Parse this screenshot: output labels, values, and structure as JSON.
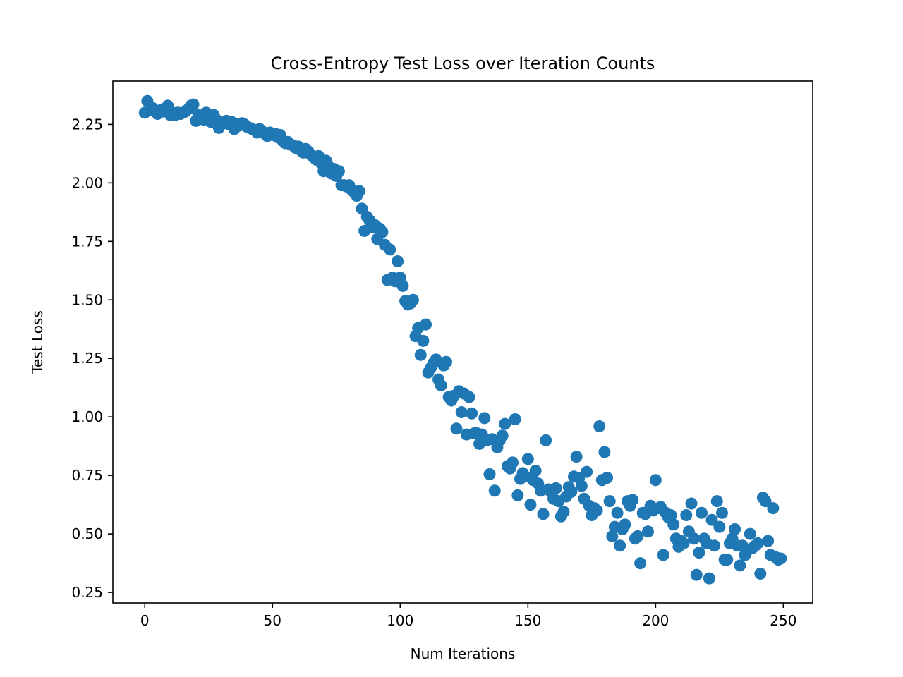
{
  "chart_data": {
    "type": "scatter",
    "title": "Cross-Entropy Test Loss over Iteration Counts",
    "xlabel": "Num Iterations",
    "ylabel": "Test Loss",
    "xlim": [
      -12.5,
      261.5
    ],
    "ylim": [
      0.205,
      2.435
    ],
    "xticks": [
      0,
      50,
      100,
      150,
      200,
      250
    ],
    "xtick_labels": [
      "0",
      "50",
      "100",
      "150",
      "200",
      "250"
    ],
    "yticks": [
      0.25,
      0.5,
      0.75,
      1.0,
      1.25,
      1.5,
      1.75,
      2.0,
      2.25
    ],
    "ytick_labels": [
      "0.25",
      "0.50",
      "0.75",
      "1.00",
      "1.25",
      "1.50",
      "1.75",
      "2.00",
      "2.25"
    ],
    "grid": false,
    "marker_color": "#1f77b4",
    "series": [
      {
        "points": [
          [
            0,
            2.3
          ],
          [
            1,
            2.35
          ],
          [
            2,
            2.31
          ],
          [
            3,
            2.32
          ],
          [
            4,
            2.31
          ],
          [
            5,
            2.295
          ],
          [
            6,
            2.31
          ],
          [
            7,
            2.305
          ],
          [
            8,
            2.315
          ],
          [
            9,
            2.33
          ],
          [
            10,
            2.29
          ],
          [
            11,
            2.3
          ],
          [
            12,
            2.29
          ],
          [
            13,
            2.3
          ],
          [
            14,
            2.295
          ],
          [
            15,
            2.3
          ],
          [
            16,
            2.305
          ],
          [
            17,
            2.315
          ],
          [
            18,
            2.33
          ],
          [
            19,
            2.335
          ],
          [
            20,
            2.265
          ],
          [
            21,
            2.29
          ],
          [
            22,
            2.275
          ],
          [
            23,
            2.27
          ],
          [
            24,
            2.3
          ],
          [
            25,
            2.28
          ],
          [
            26,
            2.26
          ],
          [
            27,
            2.29
          ],
          [
            28,
            2.27
          ],
          [
            29,
            2.235
          ],
          [
            30,
            2.26
          ],
          [
            31,
            2.255
          ],
          [
            32,
            2.265
          ],
          [
            33,
            2.25
          ],
          [
            34,
            2.26
          ],
          [
            35,
            2.23
          ],
          [
            36,
            2.25
          ],
          [
            37,
            2.245
          ],
          [
            38,
            2.255
          ],
          [
            39,
            2.25
          ],
          [
            40,
            2.24
          ],
          [
            41,
            2.235
          ],
          [
            42,
            2.23
          ],
          [
            43,
            2.225
          ],
          [
            44,
            2.215
          ],
          [
            45,
            2.23
          ],
          [
            46,
            2.22
          ],
          [
            47,
            2.21
          ],
          [
            48,
            2.2
          ],
          [
            49,
            2.215
          ],
          [
            50,
            2.205
          ],
          [
            51,
            2.21
          ],
          [
            52,
            2.195
          ],
          [
            53,
            2.205
          ],
          [
            54,
            2.18
          ],
          [
            55,
            2.17
          ],
          [
            56,
            2.175
          ],
          [
            57,
            2.165
          ],
          [
            58,
            2.16
          ],
          [
            59,
            2.15
          ],
          [
            60,
            2.155
          ],
          [
            61,
            2.14
          ],
          [
            62,
            2.13
          ],
          [
            63,
            2.145
          ],
          [
            64,
            2.135
          ],
          [
            65,
            2.12
          ],
          [
            66,
            2.11
          ],
          [
            67,
            2.1
          ],
          [
            68,
            2.115
          ],
          [
            69,
            2.085
          ],
          [
            70,
            2.05
          ],
          [
            71,
            2.095
          ],
          [
            72,
            2.07
          ],
          [
            73,
            2.04
          ],
          [
            74,
            2.06
          ],
          [
            75,
            2.03
          ],
          [
            76,
            2.05
          ],
          [
            77,
            1.99
          ],
          [
            78,
            1.99
          ],
          [
            79,
            1.985
          ],
          [
            80,
            1.99
          ],
          [
            81,
            1.97
          ],
          [
            82,
            1.96
          ],
          [
            83,
            1.945
          ],
          [
            84,
            1.965
          ],
          [
            85,
            1.89
          ],
          [
            86,
            1.795
          ],
          [
            87,
            1.855
          ],
          [
            88,
            1.84
          ],
          [
            89,
            1.81
          ],
          [
            90,
            1.82
          ],
          [
            91,
            1.76
          ],
          [
            92,
            1.805
          ],
          [
            93,
            1.79
          ],
          [
            94,
            1.735
          ],
          [
            95,
            1.585
          ],
          [
            96,
            1.715
          ],
          [
            97,
            1.595
          ],
          [
            98,
            1.58
          ],
          [
            99,
            1.665
          ],
          [
            100,
            1.595
          ],
          [
            101,
            1.56
          ],
          [
            102,
            1.495
          ],
          [
            103,
            1.48
          ],
          [
            104,
            1.485
          ],
          [
            105,
            1.5
          ],
          [
            106,
            1.345
          ],
          [
            107,
            1.38
          ],
          [
            108,
            1.265
          ],
          [
            109,
            1.325
          ],
          [
            110,
            1.395
          ],
          [
            111,
            1.19
          ],
          [
            112,
            1.21
          ],
          [
            113,
            1.23
          ],
          [
            114,
            1.245
          ],
          [
            115,
            1.16
          ],
          [
            116,
            1.135
          ],
          [
            117,
            1.22
          ],
          [
            118,
            1.235
          ],
          [
            119,
            1.085
          ],
          [
            120,
            1.07
          ],
          [
            121,
            1.09
          ],
          [
            122,
            0.95
          ],
          [
            123,
            1.11
          ],
          [
            124,
            1.02
          ],
          [
            125,
            1.1
          ],
          [
            126,
            0.925
          ],
          [
            127,
            1.085
          ],
          [
            128,
            1.015
          ],
          [
            129,
            0.93
          ],
          [
            130,
            0.93
          ],
          [
            131,
            0.885
          ],
          [
            132,
            0.925
          ],
          [
            133,
            0.995
          ],
          [
            134,
            0.9
          ],
          [
            135,
            0.755
          ],
          [
            136,
            0.905
          ],
          [
            137,
            0.685
          ],
          [
            138,
            0.87
          ],
          [
            139,
            0.9
          ],
          [
            140,
            0.92
          ],
          [
            141,
            0.97
          ],
          [
            142,
            0.79
          ],
          [
            143,
            0.78
          ],
          [
            144,
            0.805
          ],
          [
            145,
            0.99
          ],
          [
            146,
            0.665
          ],
          [
            147,
            0.735
          ],
          [
            148,
            0.76
          ],
          [
            149,
            0.745
          ],
          [
            150,
            0.82
          ],
          [
            151,
            0.625
          ],
          [
            152,
            0.73
          ],
          [
            153,
            0.77
          ],
          [
            154,
            0.715
          ],
          [
            155,
            0.685
          ],
          [
            156,
            0.585
          ],
          [
            157,
            0.9
          ],
          [
            158,
            0.69
          ],
          [
            159,
            0.68
          ],
          [
            160,
            0.65
          ],
          [
            161,
            0.695
          ],
          [
            162,
            0.64
          ],
          [
            163,
            0.575
          ],
          [
            164,
            0.595
          ],
          [
            165,
            0.66
          ],
          [
            166,
            0.7
          ],
          [
            167,
            0.68
          ],
          [
            168,
            0.745
          ],
          [
            169,
            0.83
          ],
          [
            170,
            0.74
          ],
          [
            171,
            0.705
          ],
          [
            172,
            0.65
          ],
          [
            173,
            0.765
          ],
          [
            174,
            0.62
          ],
          [
            175,
            0.58
          ],
          [
            176,
            0.61
          ],
          [
            177,
            0.6
          ],
          [
            178,
            0.96
          ],
          [
            179,
            0.73
          ],
          [
            180,
            0.85
          ],
          [
            181,
            0.74
          ],
          [
            182,
            0.64
          ],
          [
            183,
            0.49
          ],
          [
            184,
            0.53
          ],
          [
            185,
            0.59
          ],
          [
            186,
            0.45
          ],
          [
            187,
            0.52
          ],
          [
            188,
            0.54
          ],
          [
            189,
            0.64
          ],
          [
            190,
            0.62
          ],
          [
            191,
            0.645
          ],
          [
            192,
            0.48
          ],
          [
            193,
            0.49
          ],
          [
            194,
            0.375
          ],
          [
            195,
            0.59
          ],
          [
            196,
            0.585
          ],
          [
            197,
            0.51
          ],
          [
            198,
            0.62
          ],
          [
            199,
            0.6
          ],
          [
            200,
            0.73
          ],
          [
            201,
            0.61
          ],
          [
            202,
            0.615
          ],
          [
            203,
            0.41
          ],
          [
            204,
            0.59
          ],
          [
            205,
            0.57
          ],
          [
            206,
            0.58
          ],
          [
            207,
            0.54
          ],
          [
            208,
            0.48
          ],
          [
            209,
            0.445
          ],
          [
            210,
            0.47
          ],
          [
            211,
            0.46
          ],
          [
            212,
            0.58
          ],
          [
            213,
            0.51
          ],
          [
            214,
            0.63
          ],
          [
            215,
            0.48
          ],
          [
            216,
            0.325
          ],
          [
            217,
            0.42
          ],
          [
            218,
            0.59
          ],
          [
            219,
            0.48
          ],
          [
            220,
            0.46
          ],
          [
            221,
            0.31
          ],
          [
            222,
            0.56
          ],
          [
            223,
            0.45
          ],
          [
            224,
            0.64
          ],
          [
            225,
            0.53
          ],
          [
            226,
            0.59
          ],
          [
            227,
            0.39
          ],
          [
            228,
            0.39
          ],
          [
            229,
            0.46
          ],
          [
            230,
            0.48
          ],
          [
            231,
            0.52
          ],
          [
            232,
            0.45
          ],
          [
            233,
            0.365
          ],
          [
            234,
            0.45
          ],
          [
            235,
            0.41
          ],
          [
            236,
            0.43
          ],
          [
            237,
            0.5
          ],
          [
            238,
            0.44
          ],
          [
            239,
            0.45
          ],
          [
            240,
            0.46
          ],
          [
            241,
            0.33
          ],
          [
            242,
            0.655
          ],
          [
            243,
            0.64
          ],
          [
            244,
            0.47
          ],
          [
            245,
            0.41
          ],
          [
            246,
            0.61
          ],
          [
            247,
            0.4
          ],
          [
            248,
            0.39
          ],
          [
            249,
            0.395
          ]
        ]
      }
    ]
  }
}
